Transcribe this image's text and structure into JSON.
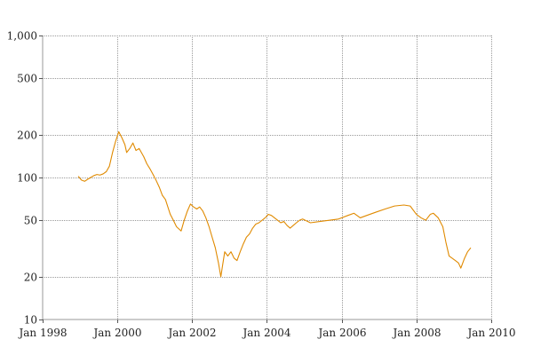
{
  "chart_data": {
    "type": "line",
    "title": "",
    "xlabel": "",
    "ylabel": "",
    "y_scale": "log",
    "ylim": [
      10,
      1000
    ],
    "xlim": [
      "1998-01-01",
      "2010-01-01"
    ],
    "grid": true,
    "legend": "none",
    "colors": {
      "series": "#e08a00",
      "grid": "#9a9a9a",
      "text": "#222222"
    },
    "x_ticks": [
      {
        "date": "1998-01-01",
        "label": "Jan 1998"
      },
      {
        "date": "2000-01-01",
        "label": "Jan 2000"
      },
      {
        "date": "2002-01-01",
        "label": "Jan 2002"
      },
      {
        "date": "2004-01-01",
        "label": "Jan 2004"
      },
      {
        "date": "2006-01-01",
        "label": "Jan 2006"
      },
      {
        "date": "2008-01-01",
        "label": "Jan 2008"
      },
      {
        "date": "2010-01-01",
        "label": "Jan 2010"
      }
    ],
    "y_ticks": [
      {
        "value": 10,
        "label": "10"
      },
      {
        "value": 20,
        "label": "20"
      },
      {
        "value": 50,
        "label": "50"
      },
      {
        "value": 100,
        "label": "100"
      },
      {
        "value": 200,
        "label": "200"
      },
      {
        "value": 500,
        "label": "500"
      },
      {
        "value": 1000,
        "label": "1,000"
      }
    ],
    "series": [
      {
        "points": [
          [
            "1998-12-15",
            102
          ],
          [
            "1999-01-15",
            96
          ],
          [
            "1999-02-15",
            94
          ],
          [
            "1999-03-15",
            97
          ],
          [
            "1999-04-15",
            100
          ],
          [
            "1999-05-15",
            103
          ],
          [
            "1999-06-15",
            105
          ],
          [
            "1999-07-15",
            104
          ],
          [
            "1999-08-15",
            106
          ],
          [
            "1999-09-15",
            110
          ],
          [
            "1999-10-15",
            120
          ],
          [
            "1999-11-15",
            150
          ],
          [
            "1999-12-15",
            180
          ],
          [
            "2000-01-15",
            210
          ],
          [
            "2000-02-15",
            190
          ],
          [
            "2000-03-15",
            170
          ],
          [
            "2000-04-01",
            150
          ],
          [
            "2000-05-01",
            160
          ],
          [
            "2000-06-01",
            175
          ],
          [
            "2000-07-01",
            155
          ],
          [
            "2000-08-01",
            160
          ],
          [
            "2000-09-15",
            140
          ],
          [
            "2000-10-15",
            125
          ],
          [
            "2000-11-15",
            115
          ],
          [
            "2000-12-15",
            105
          ],
          [
            "2001-01-15",
            95
          ],
          [
            "2001-02-15",
            85
          ],
          [
            "2001-03-15",
            75
          ],
          [
            "2001-04-15",
            70
          ],
          [
            "2001-05-15",
            60
          ],
          [
            "2001-06-01",
            55
          ],
          [
            "2001-07-01",
            50
          ],
          [
            "2001-08-01",
            45
          ],
          [
            "2001-09-15",
            42
          ],
          [
            "2001-10-15",
            50
          ],
          [
            "2001-11-15",
            58
          ],
          [
            "2001-12-15",
            65
          ],
          [
            "2002-01-15",
            62
          ],
          [
            "2002-02-15",
            60
          ],
          [
            "2002-03-15",
            62
          ],
          [
            "2002-04-15",
            58
          ],
          [
            "2002-05-15",
            52
          ],
          [
            "2002-06-15",
            45
          ],
          [
            "2002-07-15",
            38
          ],
          [
            "2002-08-15",
            32
          ],
          [
            "2002-09-15",
            25
          ],
          [
            "2002-10-08",
            20
          ],
          [
            "2002-10-25",
            24
          ],
          [
            "2002-11-15",
            30
          ],
          [
            "2002-12-15",
            28
          ],
          [
            "2003-01-15",
            30
          ],
          [
            "2003-02-15",
            27
          ],
          [
            "2003-03-15",
            26
          ],
          [
            "2003-04-15",
            30
          ],
          [
            "2003-05-15",
            34
          ],
          [
            "2003-06-15",
            38
          ],
          [
            "2003-07-15",
            40
          ],
          [
            "2003-08-15",
            44
          ],
          [
            "2003-09-15",
            47
          ],
          [
            "2003-10-15",
            48
          ],
          [
            "2003-11-15",
            50
          ],
          [
            "2003-12-15",
            52
          ],
          [
            "2004-01-15",
            55
          ],
          [
            "2004-02-15",
            54
          ],
          [
            "2004-03-15",
            52
          ],
          [
            "2004-04-15",
            50
          ],
          [
            "2004-05-15",
            48
          ],
          [
            "2004-06-15",
            49
          ],
          [
            "2004-07-15",
            46
          ],
          [
            "2004-08-15",
            44
          ],
          [
            "2004-09-15",
            46
          ],
          [
            "2004-10-15",
            48
          ],
          [
            "2004-11-15",
            50
          ],
          [
            "2004-12-15",
            51
          ],
          [
            "2005-03-01",
            48
          ],
          [
            "2005-06-01",
            49
          ],
          [
            "2005-09-01",
            50
          ],
          [
            "2005-12-01",
            51
          ],
          [
            "2006-03-01",
            54
          ],
          [
            "2006-05-01",
            56
          ],
          [
            "2006-07-01",
            52
          ],
          [
            "2006-09-01",
            54
          ],
          [
            "2006-12-01",
            57
          ],
          [
            "2007-03-01",
            60
          ],
          [
            "2007-06-01",
            63
          ],
          [
            "2007-09-01",
            64
          ],
          [
            "2007-11-01",
            63
          ],
          [
            "2008-01-01",
            55
          ],
          [
            "2008-02-15",
            52
          ],
          [
            "2008-04-01",
            50
          ],
          [
            "2008-05-15",
            55
          ],
          [
            "2008-06-15",
            56
          ],
          [
            "2008-08-01",
            52
          ],
          [
            "2008-09-15",
            45
          ],
          [
            "2008-10-15",
            35
          ],
          [
            "2008-11-15",
            28
          ],
          [
            "2008-12-15",
            27
          ],
          [
            "2009-01-15",
            26
          ],
          [
            "2009-02-15",
            25
          ],
          [
            "2009-03-10",
            23
          ],
          [
            "2009-04-15",
            27
          ],
          [
            "2009-05-15",
            30
          ],
          [
            "2009-06-15",
            32
          ]
        ]
      }
    ]
  }
}
